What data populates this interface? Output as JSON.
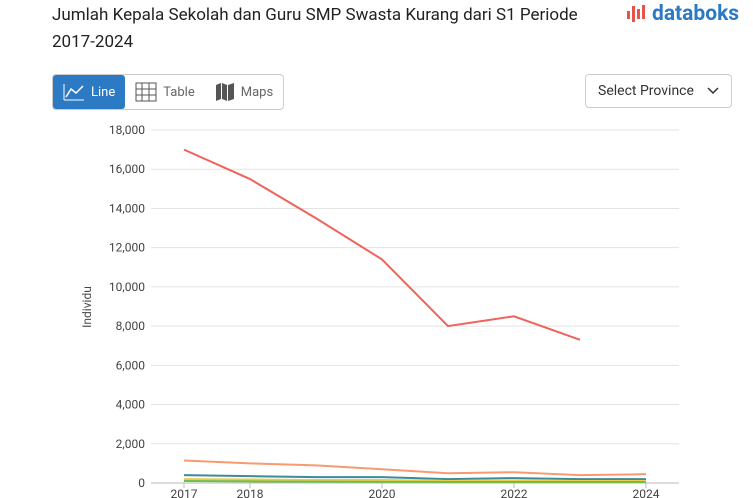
{
  "ui": {
    "logo": "databoks",
    "tabs": [
      "Line",
      "Table",
      "Maps"
    ],
    "select": "Select Province"
  },
  "chart_data": {
    "type": "line",
    "title": "Jumlah Kepala Sekolah dan Guru SMP Swasta Kurang dari S1 Periode 2017-2024",
    "y_label": "Individu",
    "x": [
      2017,
      2018,
      2019,
      2020,
      2021,
      2022,
      2023,
      2024
    ],
    "xlim": [
      2016.5,
      2024.5
    ],
    "xticks": [
      2017,
      2018,
      2020,
      2022,
      2024
    ],
    "ylim": [
      0,
      18000
    ],
    "yticks": [
      0,
      {
        "value": 2000,
        "label": "2,000"
      },
      {
        "value": 4000,
        "label": "4,000"
      },
      {
        "value": 6000,
        "label": "6,000"
      },
      {
        "value": 8000,
        "label": "8,000"
      },
      {
        "value": 10000,
        "label": "10,000"
      },
      {
        "value": 12000,
        "label": "12,000"
      },
      {
        "value": 14000,
        "label": "14,000"
      },
      {
        "value": 16000,
        "label": "16,000"
      },
      {
        "value": 18000,
        "label": "18,000"
      }
    ],
    "grid": true,
    "series": [
      {
        "color": "#f0625a",
        "values": [
          17000,
          15500,
          13500,
          11400,
          8000,
          8500,
          7300,
          null
        ]
      },
      {
        "color": "#f79b6e",
        "values": [
          1150,
          1000,
          900,
          700,
          500,
          550,
          400,
          450
        ]
      },
      {
        "color": "#3a8c9c",
        "values": [
          400,
          350,
          300,
          300,
          200,
          250,
          200,
          200
        ]
      },
      {
        "color": "#f2c94c",
        "values": [
          200,
          180,
          150,
          150,
          100,
          120,
          100,
          100
        ]
      },
      {
        "color": "#6cc04a",
        "values": [
          100,
          80,
          70,
          60,
          50,
          50,
          50,
          50
        ]
      }
    ]
  }
}
